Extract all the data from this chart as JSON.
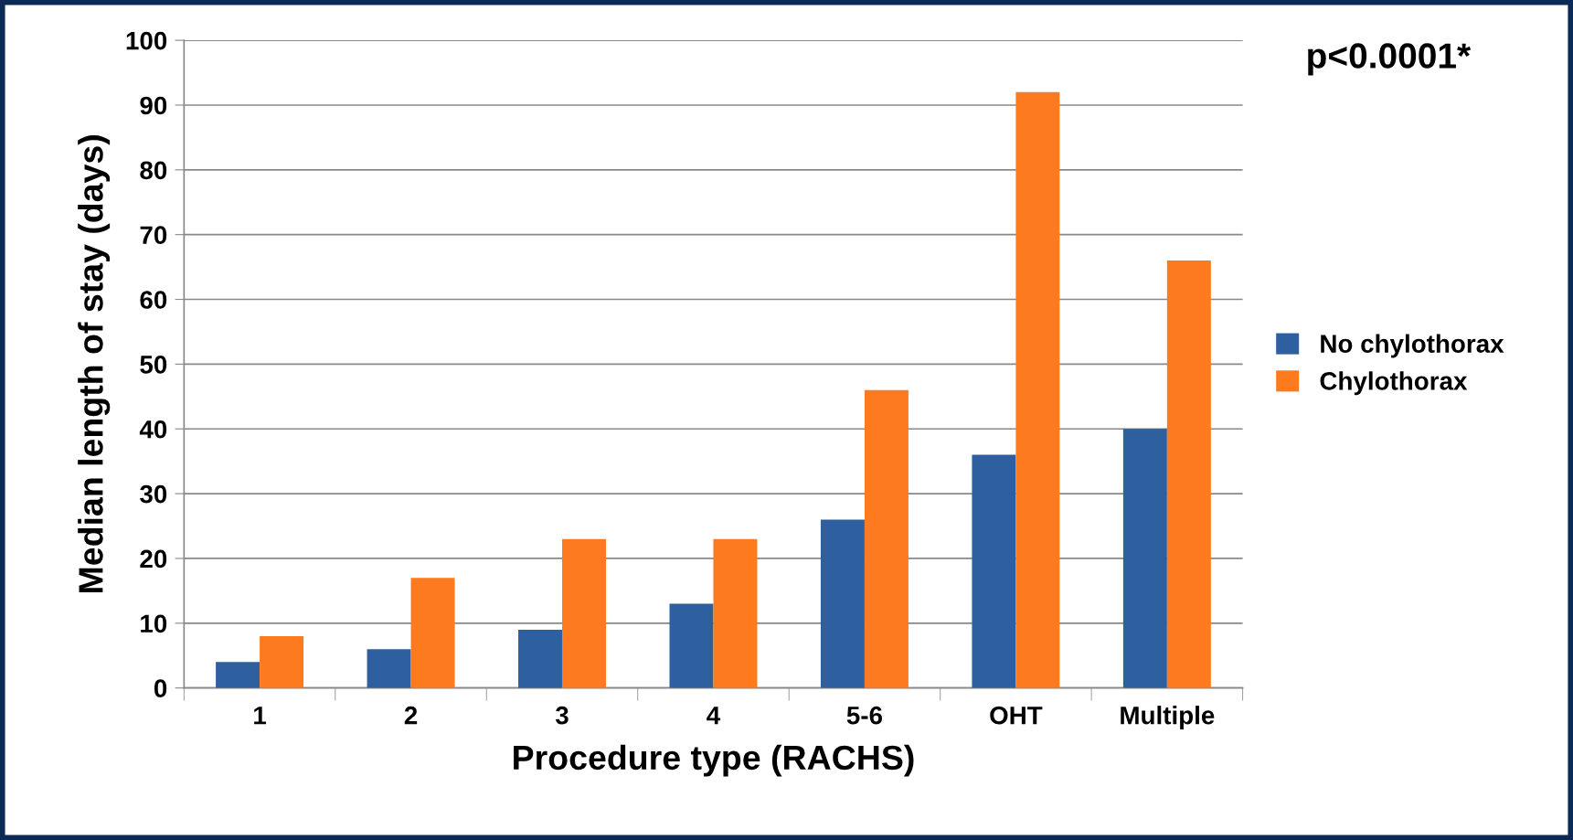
{
  "chart_data": {
    "type": "bar",
    "xlabel": "Procedure type (RACHS)",
    "ylabel": "Median length of stay (days)",
    "categories": [
      "1",
      "2",
      "3",
      "4",
      "5-6",
      "OHT",
      "Multiple"
    ],
    "series": [
      {
        "name": "No chylothorax",
        "color": "#2e5f9e",
        "values": [
          4,
          6,
          9,
          13,
          26,
          36,
          40
        ]
      },
      {
        "name": "Chylothorax",
        "color": "#fd7a1f",
        "values": [
          8,
          17,
          23,
          23,
          46,
          92,
          66
        ]
      }
    ],
    "ylim": [
      0,
      100
    ],
    "yticks": [
      0,
      10,
      20,
      30,
      40,
      50,
      60,
      70,
      80,
      90,
      100
    ],
    "grid": "y",
    "legend": "right",
    "annotations": [
      "p<0.0001*"
    ]
  }
}
